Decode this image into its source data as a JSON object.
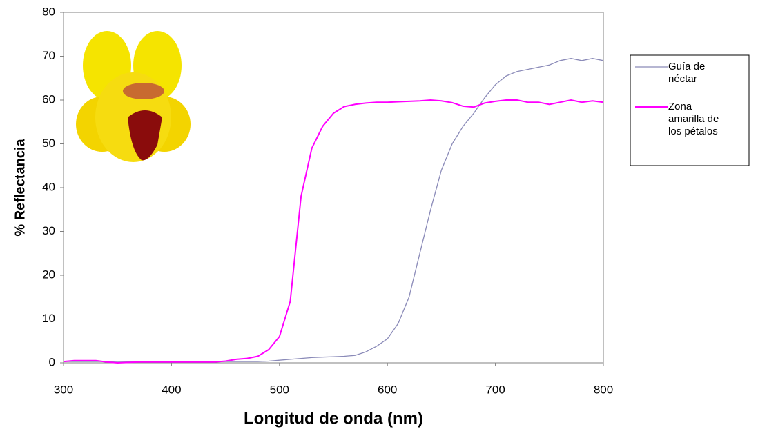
{
  "chart_data": {
    "type": "line",
    "xlabel": "Longitud de onda (nm)",
    "ylabel": "% Reflectancia",
    "x": [
      300,
      310,
      320,
      330,
      340,
      350,
      360,
      370,
      380,
      390,
      400,
      410,
      420,
      430,
      440,
      450,
      460,
      470,
      480,
      490,
      500,
      510,
      520,
      530,
      540,
      550,
      560,
      570,
      580,
      590,
      600,
      610,
      620,
      630,
      640,
      650,
      660,
      670,
      680,
      690,
      700,
      710,
      720,
      730,
      740,
      750,
      760,
      770,
      780,
      790,
      800
    ],
    "series": [
      {
        "name": "Guía de néctar",
        "color": "#8a8ab8",
        "values": [
          0.3,
          0.3,
          0.3,
          0.3,
          0.3,
          0.3,
          0.3,
          0.3,
          0.3,
          0.3,
          0.3,
          0.3,
          0.3,
          0.3,
          0.3,
          0.3,
          0.3,
          0.3,
          0.3,
          0.4,
          0.6,
          0.8,
          1.0,
          1.2,
          1.3,
          1.4,
          1.5,
          1.7,
          2.5,
          3.8,
          5.5,
          9,
          15,
          25,
          35,
          44,
          50,
          54,
          57,
          60.5,
          63.5,
          65.5,
          66.5,
          67,
          67.5,
          68,
          69,
          69.5,
          69,
          69.5,
          69
        ]
      },
      {
        "name": "Zona amarilla de los pétalos",
        "color": "#ff00ff",
        "values": [
          0.3,
          0.5,
          0.5,
          0.5,
          0.2,
          0,
          0.1,
          0.2,
          0.2,
          0.2,
          0.2,
          0.2,
          0.2,
          0.2,
          0.2,
          0.4,
          0.8,
          1.0,
          1.5,
          3,
          6,
          14,
          38,
          49,
          54,
          57,
          58.5,
          59,
          59.3,
          59.5,
          59.5,
          59.6,
          59.7,
          59.8,
          60,
          59.8,
          59.4,
          58.6,
          58.4,
          59.3,
          59.7,
          60,
          60,
          59.5,
          59.5,
          59,
          59.5,
          60,
          59.5,
          59.8,
          59.5
        ]
      }
    ],
    "xlim": [
      300,
      800
    ],
    "xticks": [
      300,
      400,
      500,
      600,
      700,
      800
    ],
    "ylim": [
      0,
      80
    ],
    "yticks": [
      0,
      10,
      20,
      30,
      40,
      50,
      60,
      70,
      80
    ],
    "grid": false,
    "legend": "right"
  }
}
